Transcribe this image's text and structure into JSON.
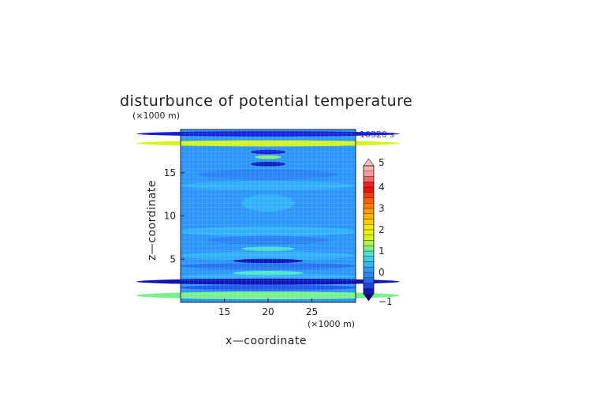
{
  "chart_data": {
    "type": "heatmap",
    "title": "disturbunce of potential temperature",
    "xlabel": "x—coordinate",
    "ylabel": "z—coordinate",
    "x_unit_label": "(×1000 m)",
    "y_unit_label": "(×1000 m)",
    "time_label": "10320 s",
    "xlim": [
      10,
      30
    ],
    "ylim": [
      0,
      20
    ],
    "x_ticks": [
      15,
      20,
      25
    ],
    "y_ticks": [
      5,
      10,
      15
    ],
    "colorbar": {
      "ticks": [
        -1,
        0,
        1,
        2,
        3,
        4,
        5
      ],
      "range": [
        -1,
        5
      ],
      "levels": 24,
      "extend": "both"
    },
    "bands": [
      {
        "z": 0.8,
        "value": 1.1,
        "x_extent": 30,
        "dz": 0.45
      },
      {
        "z": 2.4,
        "value": -0.9,
        "x_extent": 30,
        "dz": 0.35
      },
      {
        "z": 3.4,
        "value": 0.9,
        "x_extent": 4,
        "dz": 0.25
      },
      {
        "z": 4.8,
        "value": -0.9,
        "x_extent": 4,
        "dz": 0.25
      },
      {
        "z": 6.2,
        "value": 0.8,
        "x_extent": 3,
        "dz": 0.25
      },
      {
        "z": 16.0,
        "value": -0.9,
        "x_extent": 2,
        "dz": 0.25
      },
      {
        "z": 16.8,
        "value": 1.2,
        "x_extent": 1.5,
        "dz": 0.2
      },
      {
        "z": 17.4,
        "value": -0.8,
        "x_extent": 2,
        "dz": 0.25
      },
      {
        "z": 18.4,
        "value": 1.6,
        "x_extent": 30,
        "dz": 0.35
      },
      {
        "z": 19.5,
        "value": -0.8,
        "x_extent": 30,
        "dz": 0.3
      }
    ]
  }
}
